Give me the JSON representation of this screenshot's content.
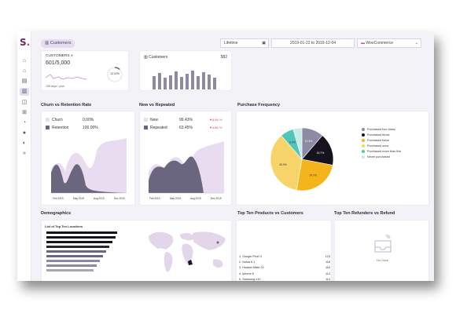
{
  "app": {
    "logo_letter": "S",
    "logo_dot": "."
  },
  "topbar": {
    "tab_label": "Customers",
    "period": "Lifetime",
    "date_range": "2019-01-22 to 2019-12-04",
    "store": "WooCommerce"
  },
  "kpi": {
    "customers_label": "CUSTOMERS",
    "customers_value": "601/5,000",
    "customers_sub": "158 days / year",
    "customers_pct": "12.02%",
    "chart_title": "Customers",
    "chart_value": "582"
  },
  "sections": {
    "churn": "Churn vs Retention Rate",
    "new_repeated": "New vs Repeated",
    "purchase_freq": "Purchase Frequency",
    "demographics": "Demographics",
    "top_products": "Top Ten Products vs Customers",
    "top_refunders": "Top Ten Refunders vs Refund"
  },
  "churn": {
    "rows": [
      {
        "label": "Churn",
        "value": "0.00%"
      },
      {
        "label": "Retention",
        "value": "100.00%"
      }
    ],
    "x_ticks": [
      "Feb 2019",
      "May 2019",
      "Aug 2019",
      "Dec 2019"
    ]
  },
  "new_repeated": {
    "rows": [
      {
        "label": "New",
        "value": "99.43%",
        "delta": "8.56 %"
      },
      {
        "label": "Repeated",
        "value": "63.45%",
        "delta": "4.86 %"
      }
    ],
    "x_ticks": [
      "Feb 2019",
      "May 2019",
      "Aug 2019",
      "Dec 2019"
    ]
  },
  "chart_data": {
    "type": "pie",
    "slices": [
      {
        "label": "Purchased four times",
        "value": 11.3,
        "color": "#8e8aa3"
      },
      {
        "label": "Purchased thrice",
        "value": 16.7,
        "color": "#16131f"
      },
      {
        "label": "Purchased twice",
        "value": 24.7,
        "color": "#f4b41c"
      },
      {
        "label": "Purchased once",
        "value": 35.9,
        "color": "#f7d46a"
      },
      {
        "label": "Purchased more than five",
        "value": 6.9,
        "color": "#4fc6b7"
      },
      {
        "label": "Never purchased",
        "value": 4.5,
        "color": "#c7ece5"
      }
    ],
    "data_labels": [
      "11.3%",
      "16.7%",
      "24.7%",
      "35.9%",
      "6.9%",
      ""
    ]
  },
  "demographics": {
    "list_title": "List of Top Ten Locations"
  },
  "products": [
    {
      "name": "1. Google Pixel 3",
      "value": "123"
    },
    {
      "name": "2. Nokia 6.1",
      "value": "118"
    },
    {
      "name": "3. Huawei Mate 20",
      "value": "116"
    },
    {
      "name": "4. iphone 8",
      "value": "114"
    },
    {
      "name": "5. Samsung s10",
      "value": "114"
    },
    {
      "name": "6. Xiaomi Mi A1",
      "value": "113"
    },
    {
      "name": "7. one plus 6",
      "value": "112"
    },
    {
      "name": "8. Huawei Mate 20 RS P...",
      "value": "112"
    },
    {
      "name": "9. one plus 6t",
      "value": "110"
    },
    {
      "name": "10. oneplus 6",
      "value": "110"
    }
  ],
  "refunders": {
    "empty_text": "No Data"
  },
  "icons": [
    "home-icon",
    "bank-icon",
    "chart-icon",
    "customers-icon",
    "box-icon",
    "orders-icon",
    "report-icon",
    "avatar-icon",
    "coupon-icon",
    "expand-icon"
  ]
}
